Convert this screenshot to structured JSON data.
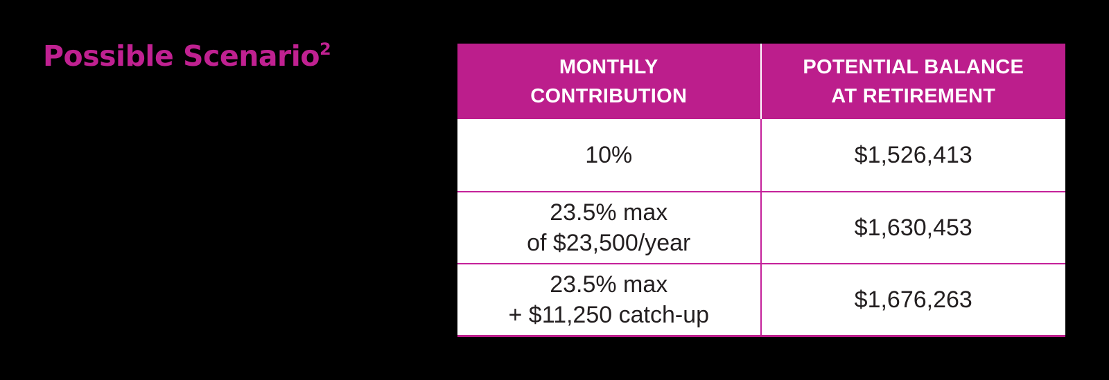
{
  "page": {
    "background_color": "#000000"
  },
  "title": {
    "text": "Possible Scenario",
    "superscript": "2",
    "color": "#c02191"
  },
  "table": {
    "accent_color": "#bc1e8c",
    "header_text_color": "#ffffff",
    "body_text_color": "#231f20",
    "headers": {
      "monthly_contribution": "MONTHLY\nCONTRIBUTION",
      "potential_balance": "POTENTIAL BALANCE\nAT RETIREMENT"
    },
    "rows": [
      {
        "contribution": "10%",
        "balance": "$1,526,413"
      },
      {
        "contribution": "23.5% max\nof $23,500/year",
        "balance": "$1,630,453"
      },
      {
        "contribution": "23.5% max\n+ $11,250 catch-up",
        "balance": "$1,676,263"
      }
    ]
  },
  "chart_data": {
    "type": "table",
    "title": "Possible Scenario²",
    "columns": [
      "Monthly Contribution",
      "Potential Balance at Retirement"
    ],
    "rows": [
      [
        "10%",
        "$1,526,413"
      ],
      [
        "23.5% max of $23,500/year",
        "$1,630,453"
      ],
      [
        "23.5% max + $11,250 catch-up",
        "$1,676,263"
      ]
    ],
    "notes": {
      "title_has_footnote_marker": "2",
      "header_background": "#bc1e8c",
      "layout": "2-column data table, magenta header band, white body rows separated by magenta rules"
    }
  }
}
